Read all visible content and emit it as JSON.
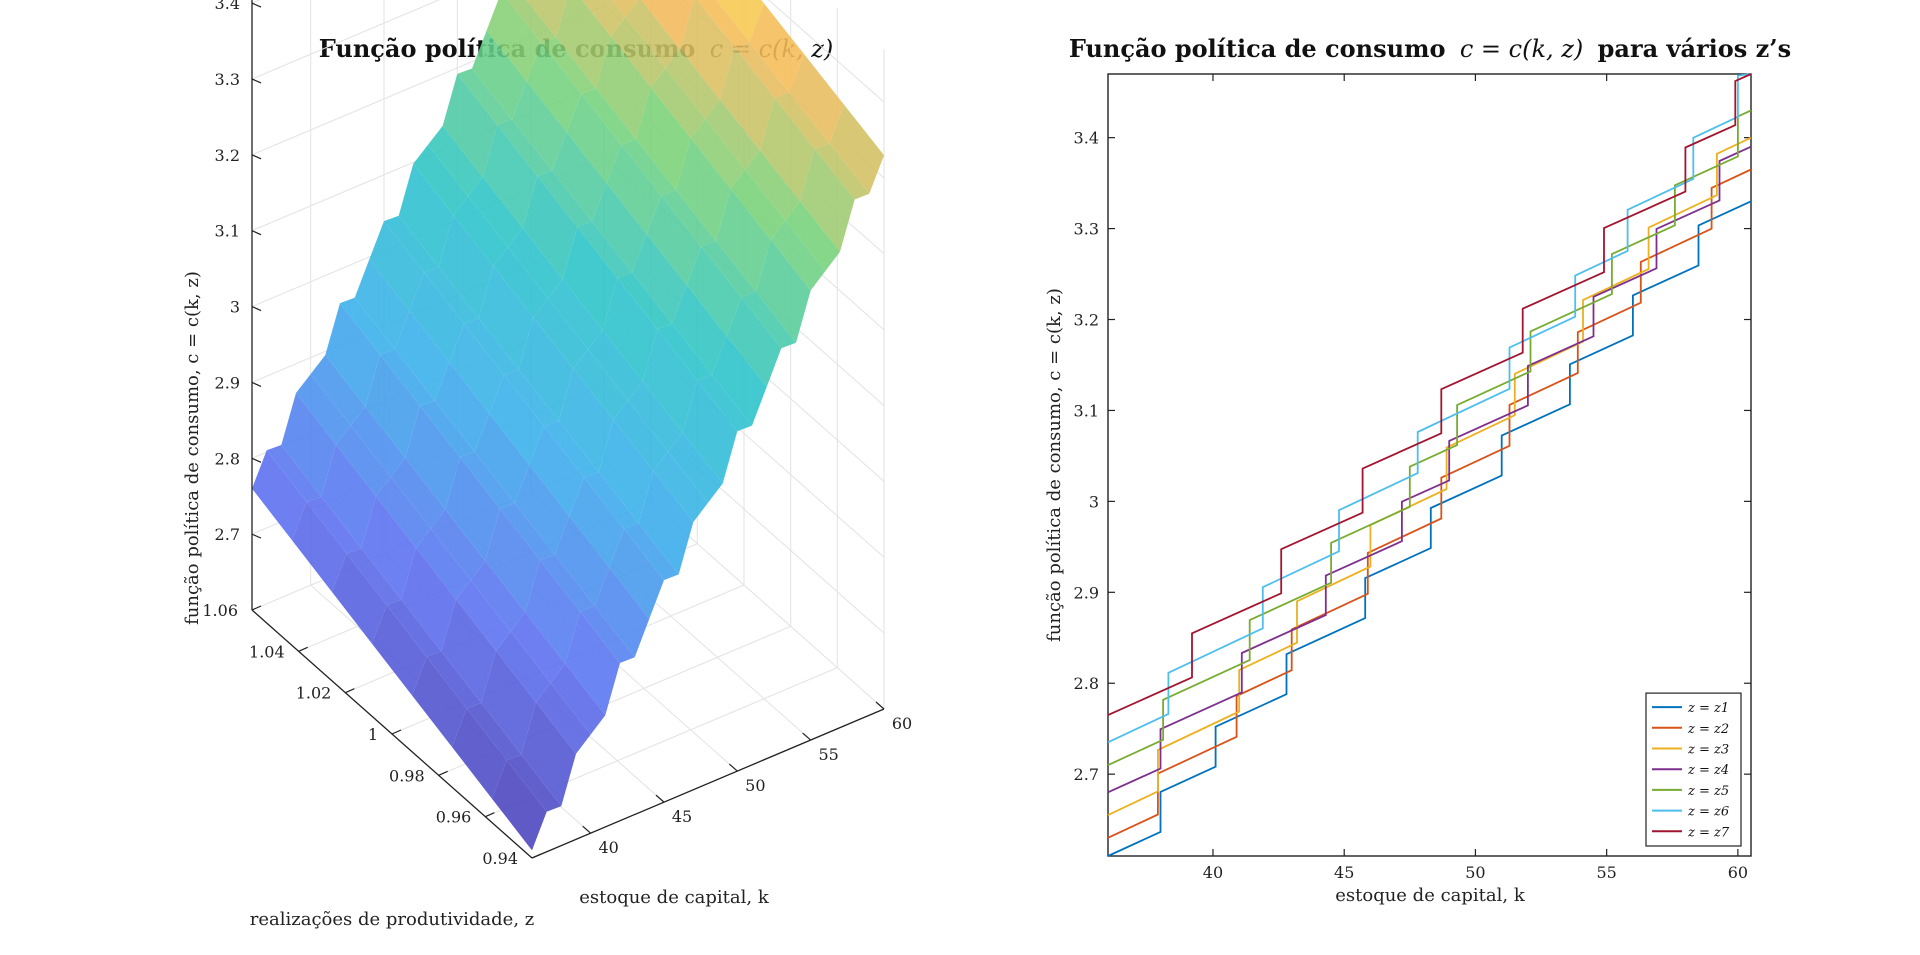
{
  "chart_data": [
    {
      "type": "surface",
      "title": "Função política de consumo",
      "title_math": "c = c(k, z)",
      "xlabel": "estoque de capital, k",
      "ylabel": "realizações de produtividade, z",
      "zlabel": "função política de consumo, c = c(k, z)",
      "x_ticks": [
        40,
        45,
        50,
        55,
        60
      ],
      "y_ticks": [
        0.94,
        0.96,
        0.98,
        1,
        1.02,
        1.04,
        1.06
      ],
      "z_ticks": [
        2.7,
        2.8,
        2.9,
        3,
        3.1,
        3.2,
        3.3,
        3.4
      ],
      "xlim": [
        36,
        60
      ],
      "ylim": [
        0.94,
        1.06
      ],
      "zlim": [
        2.6,
        3.47
      ],
      "grid": true,
      "colormap": "parula",
      "surface_corners": {
        "k36_zlow": 2.61,
        "k36_zhigh": 2.76,
        "k60_zlow": 3.33,
        "k60_zhigh": 3.47
      }
    },
    {
      "type": "line",
      "title": "Função política de consumo",
      "title_math": "c = c(k, z)",
      "title_suffix": "para vários z’s",
      "xlabel": "estoque de capital, k",
      "ylabel": "função política de consumo, c = c(k, z)",
      "xlim": [
        36,
        60.5
      ],
      "ylim": [
        2.61,
        3.47
      ],
      "x_ticks": [
        40,
        45,
        50,
        55,
        60
      ],
      "y_ticks": [
        2.7,
        2.8,
        2.9,
        3,
        3.1,
        3.2,
        3.3,
        3.4
      ],
      "grid": false,
      "legend_position": "bottom-right",
      "series": [
        {
          "name": "z = z1",
          "color": "#0072BD",
          "start": 2.61,
          "end": 3.33,
          "jumps": [
            38.0,
            40.1,
            42.8,
            45.8,
            48.3,
            51.0,
            53.6,
            56.0,
            58.5
          ]
        },
        {
          "name": "z = z2",
          "color": "#D95319",
          "start": 2.63,
          "end": 3.365,
          "jumps": [
            37.9,
            40.9,
            43.0,
            45.9,
            48.7,
            51.3,
            53.9,
            56.3,
            59.0
          ]
        },
        {
          "name": "z = z3",
          "color": "#EDB120",
          "start": 2.655,
          "end": 3.4,
          "jumps": [
            37.9,
            41.0,
            43.2,
            46.0,
            48.9,
            51.5,
            54.1,
            56.6,
            59.2
          ]
        },
        {
          "name": "z = z4",
          "color": "#7E2F8E",
          "start": 2.68,
          "end": 3.39,
          "jumps": [
            38.0,
            41.1,
            44.3,
            47.2,
            49.0,
            52.0,
            54.5,
            56.9,
            59.3
          ]
        },
        {
          "name": "z = z5",
          "color": "#77AC30",
          "start": 2.71,
          "end": 3.43,
          "jumps": [
            38.1,
            41.4,
            44.5,
            47.5,
            49.3,
            52.1,
            55.2,
            57.6,
            60.0
          ]
        },
        {
          "name": "z = z6",
          "color": "#4DBEEE",
          "start": 2.735,
          "end": 3.475,
          "jumps": [
            38.3,
            41.9,
            44.8,
            47.8,
            51.3,
            53.8,
            55.8,
            58.3,
            60.0
          ]
        },
        {
          "name": "z = z7",
          "color": "#A2142F",
          "start": 2.765,
          "end": 3.47,
          "jumps": [
            39.2,
            42.6,
            45.7,
            48.7,
            51.8,
            54.9,
            58.0,
            59.9
          ]
        }
      ]
    }
  ]
}
